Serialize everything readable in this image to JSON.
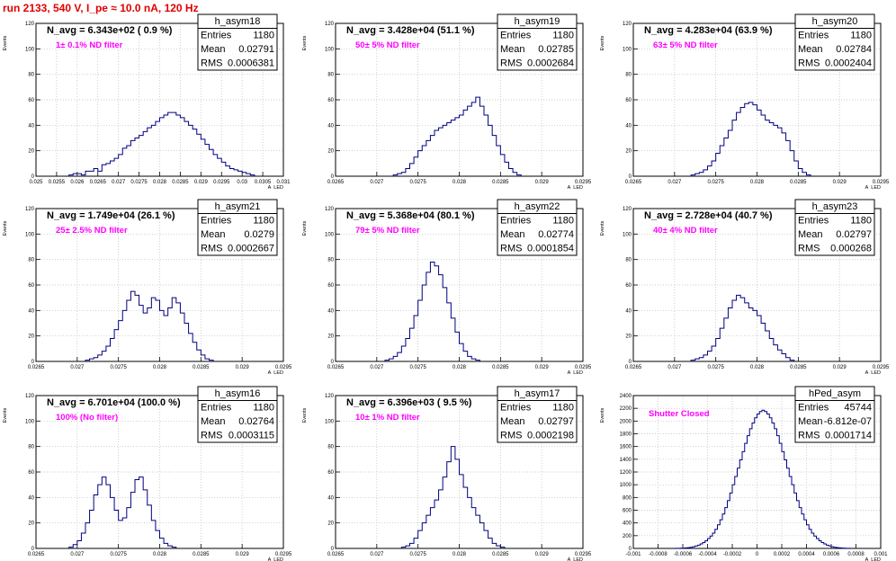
{
  "page_title": "run 2133,   540 V, I_pe ≈ 10.0 nA, 120 Hz",
  "colors": {
    "title": "#e00000",
    "histogram": "#000080",
    "note": "#ff00ff"
  },
  "chart_data": [
    {
      "type": "histogram",
      "name": "h_asym18",
      "xlabel": "A_LED",
      "ylabel": "Events",
      "title": "N_avg = 6.343e+02 ( 0.9 %)",
      "note": "1± 0.1% ND filter",
      "stats": [
        [
          "Entries",
          "1180"
        ],
        [
          "Mean",
          "0.02791"
        ],
        [
          "RMS",
          "0.0006381"
        ]
      ],
      "xlim": [
        0.025,
        0.031
      ],
      "ylim": [
        0,
        120
      ],
      "yticks": [
        0,
        20,
        40,
        60,
        80,
        100,
        120
      ],
      "xticks": [
        "0.025",
        "0.0255",
        "0.026",
        "0.0265",
        "0.027",
        "0.0275",
        "0.028",
        "0.0285",
        "0.029",
        "0.0295",
        "0.03",
        "0.0305",
        "0.031"
      ],
      "bin_start": 0.0258,
      "bin_width": 0.0001,
      "values": [
        1,
        2,
        2,
        1,
        4,
        4,
        6,
        4,
        9,
        10,
        12,
        14,
        17,
        22,
        24,
        28,
        30,
        32,
        35,
        38,
        40,
        43,
        46,
        48,
        50,
        50,
        48,
        46,
        43,
        40,
        37,
        33,
        29,
        25,
        21,
        17,
        14,
        11,
        8,
        6,
        5,
        4,
        3,
        2,
        1
      ]
    },
    {
      "type": "histogram",
      "name": "h_asym19",
      "xlabel": "A_LED",
      "ylabel": "Events",
      "title": "N_avg = 3.428e+04 (51.1 %)",
      "note": "50± 5% ND filter",
      "stats": [
        [
          "Entries",
          "1180"
        ],
        [
          "Mean",
          "0.02785"
        ],
        [
          "RMS",
          "0.0002684"
        ]
      ],
      "xlim": [
        0.0265,
        0.0295
      ],
      "ylim": [
        0,
        120
      ],
      "yticks": [
        0,
        20,
        40,
        60,
        80,
        100,
        120
      ],
      "xticks": [
        "0.0265",
        "0.027",
        "0.0275",
        "0.028",
        "0.0285",
        "0.029",
        "0.0295"
      ],
      "bin_start": 0.0272,
      "bin_width": 5e-05,
      "values": [
        1,
        2,
        3,
        6,
        10,
        15,
        20,
        24,
        28,
        32,
        36,
        38,
        40,
        42,
        44,
        46,
        48,
        52,
        55,
        58,
        62,
        55,
        48,
        40,
        32,
        24,
        17,
        11,
        6,
        3,
        1
      ]
    },
    {
      "type": "histogram",
      "name": "h_asym20",
      "xlabel": "A_LED",
      "ylabel": "Events",
      "title": "N_avg = 4.283e+04 (63.9 %)",
      "note": "63± 5% ND filter",
      "stats": [
        [
          "Entries",
          "1180"
        ],
        [
          "Mean",
          "0.02784"
        ],
        [
          "RMS",
          "0.0002404"
        ]
      ],
      "xlim": [
        0.0265,
        0.0295
      ],
      "ylim": [
        0,
        120
      ],
      "yticks": [
        0,
        20,
        40,
        60,
        80,
        100,
        120
      ],
      "xticks": [
        "0.0265",
        "0.027",
        "0.0275",
        "0.028",
        "0.0285",
        "0.029",
        "0.0295"
      ],
      "bin_start": 0.0272,
      "bin_width": 5e-05,
      "values": [
        1,
        2,
        3,
        5,
        8,
        12,
        18,
        24,
        30,
        36,
        44,
        50,
        54,
        57,
        58,
        56,
        52,
        48,
        44,
        42,
        40,
        38,
        34,
        28,
        20,
        12,
        6,
        3,
        1
      ]
    },
    {
      "type": "histogram",
      "name": "h_asym21",
      "xlabel": "A_LED",
      "ylabel": "Events",
      "title": "N_avg = 1.749e+04 (26.1 %)",
      "note": "25± 2.5% ND filter",
      "stats": [
        [
          "Entries",
          "1180"
        ],
        [
          "Mean",
          "0.0279"
        ],
        [
          "RMS",
          "0.0002667"
        ]
      ],
      "xlim": [
        0.0265,
        0.0295
      ],
      "ylim": [
        0,
        120
      ],
      "yticks": [
        0,
        20,
        40,
        60,
        80,
        100,
        120
      ],
      "xticks": [
        "0.0265",
        "0.027",
        "0.0275",
        "0.028",
        "0.0285",
        "0.029",
        "0.0295"
      ],
      "bin_start": 0.0271,
      "bin_width": 5e-05,
      "values": [
        1,
        2,
        3,
        5,
        8,
        12,
        18,
        25,
        32,
        40,
        48,
        55,
        52,
        44,
        38,
        42,
        50,
        48,
        40,
        36,
        42,
        50,
        46,
        38,
        30,
        22,
        15,
        9,
        5,
        2,
        1
      ]
    },
    {
      "type": "histogram",
      "name": "h_asym22",
      "xlabel": "A_LED",
      "ylabel": "Events",
      "title": "N_avg = 5.368e+04 (80.1 %)",
      "note": "79± 5% ND filter",
      "stats": [
        [
          "Entries",
          "1180"
        ],
        [
          "Mean",
          "0.02774"
        ],
        [
          "RMS",
          "0.0001854"
        ]
      ],
      "xlim": [
        0.0265,
        0.0295
      ],
      "ylim": [
        0,
        120
      ],
      "yticks": [
        0,
        20,
        40,
        60,
        80,
        100,
        120
      ],
      "xticks": [
        "0.0265",
        "0.027",
        "0.0275",
        "0.028",
        "0.0285",
        "0.029",
        "0.0295"
      ],
      "bin_start": 0.0271,
      "bin_width": 5e-05,
      "values": [
        1,
        2,
        4,
        7,
        12,
        18,
        26,
        36,
        48,
        60,
        70,
        78,
        75,
        68,
        58,
        46,
        34,
        23,
        14,
        8,
        4,
        2,
        1
      ]
    },
    {
      "type": "histogram",
      "name": "h_asym23",
      "xlabel": "A_LED",
      "ylabel": "Events",
      "title": "N_avg = 2.728e+04 (40.7 %)",
      "note": "40± 4% ND filter",
      "stats": [
        [
          "Entries",
          "1180"
        ],
        [
          "Mean",
          "0.02797"
        ],
        [
          "RMS",
          "0.000268"
        ]
      ],
      "xlim": [
        0.0265,
        0.0295
      ],
      "ylim": [
        0,
        120
      ],
      "yticks": [
        0,
        20,
        40,
        60,
        80,
        100,
        120
      ],
      "xticks": [
        "0.0265",
        "0.027",
        "0.0275",
        "0.028",
        "0.0285",
        "0.029",
        "0.0295"
      ],
      "bin_start": 0.0272,
      "bin_width": 5e-05,
      "values": [
        1,
        2,
        3,
        5,
        8,
        12,
        18,
        26,
        34,
        42,
        48,
        52,
        50,
        46,
        42,
        40,
        36,
        30,
        24,
        18,
        13,
        9,
        6,
        3,
        1
      ]
    },
    {
      "type": "histogram",
      "name": "h_asym16",
      "xlabel": "A_LED",
      "ylabel": "Events",
      "title": "N_avg = 6.701e+04 (100.0 %)",
      "note": "100% (No filter)",
      "stats": [
        [
          "Entries",
          "1180"
        ],
        [
          "Mean",
          "0.02764"
        ],
        [
          "RMS",
          "0.0003115"
        ]
      ],
      "xlim": [
        0.0265,
        0.0295
      ],
      "ylim": [
        0,
        120
      ],
      "yticks": [
        0,
        20,
        40,
        60,
        80,
        100,
        120
      ],
      "xticks": [
        "0.0265",
        "0.027",
        "0.0275",
        "0.028",
        "0.0285",
        "0.029",
        "0.0295"
      ],
      "bin_start": 0.0269,
      "bin_width": 5e-05,
      "values": [
        1,
        3,
        6,
        12,
        20,
        30,
        42,
        50,
        56,
        50,
        40,
        30,
        22,
        24,
        32,
        44,
        54,
        56,
        46,
        34,
        22,
        14,
        8,
        4,
        2,
        1
      ]
    },
    {
      "type": "histogram",
      "name": "h_asym17",
      "xlabel": "A_LED",
      "ylabel": "Events",
      "title": "N_avg = 6.396e+03 ( 9.5 %)",
      "note": "10± 1% ND filter",
      "stats": [
        [
          "Entries",
          "1180"
        ],
        [
          "Mean",
          "0.02797"
        ],
        [
          "RMS",
          "0.0002198"
        ]
      ],
      "xlim": [
        0.0265,
        0.0295
      ],
      "ylim": [
        0,
        120
      ],
      "yticks": [
        0,
        20,
        40,
        60,
        80,
        100,
        120
      ],
      "xticks": [
        "0.0265",
        "0.027",
        "0.0275",
        "0.028",
        "0.0285",
        "0.029",
        "0.0295"
      ],
      "bin_start": 0.0273,
      "bin_width": 5e-05,
      "values": [
        1,
        2,
        4,
        8,
        14,
        20,
        26,
        32,
        38,
        46,
        56,
        68,
        80,
        70,
        58,
        48,
        40,
        32,
        26,
        20,
        14,
        8,
        4,
        2,
        1
      ]
    },
    {
      "type": "histogram",
      "name": "hPed_asym",
      "xlabel": "A_LED",
      "ylabel": "Events",
      "title": "",
      "note": "Shutter Closed",
      "stats": [
        [
          "Entries",
          "45744"
        ],
        [
          "Mean",
          "-6.812e-07"
        ],
        [
          "RMS",
          "0.0001714"
        ]
      ],
      "xlim": [
        -0.001,
        0.001
      ],
      "ylim": [
        0,
        2400
      ],
      "yticks": [
        0,
        200,
        400,
        600,
        800,
        1000,
        1200,
        1400,
        1600,
        1800,
        2000,
        2200,
        2400
      ],
      "xticks": [
        "-0.001",
        "-0.0008",
        "-0.0006",
        "-0.0004",
        "-0.0002",
        "0",
        "0.0002",
        "0.0004",
        "0.0006",
        "0.0008",
        "0.001"
      ],
      "bin_start": -0.00066,
      "bin_width": 2e-05,
      "values": [
        1,
        2,
        3,
        5,
        8,
        12,
        18,
        26,
        38,
        52,
        70,
        92,
        120,
        155,
        195,
        240,
        300,
        370,
        450,
        540,
        640,
        750,
        870,
        1000,
        1130,
        1260,
        1390,
        1520,
        1650,
        1770,
        1880,
        1970,
        2050,
        2110,
        2150,
        2170,
        2150,
        2110,
        2050,
        1970,
        1880,
        1770,
        1650,
        1520,
        1390,
        1260,
        1130,
        1000,
        870,
        750,
        640,
        540,
        450,
        370,
        300,
        240,
        195,
        155,
        120,
        92,
        70,
        52,
        38,
        26,
        18,
        12,
        8,
        5,
        3,
        2,
        1
      ]
    }
  ]
}
